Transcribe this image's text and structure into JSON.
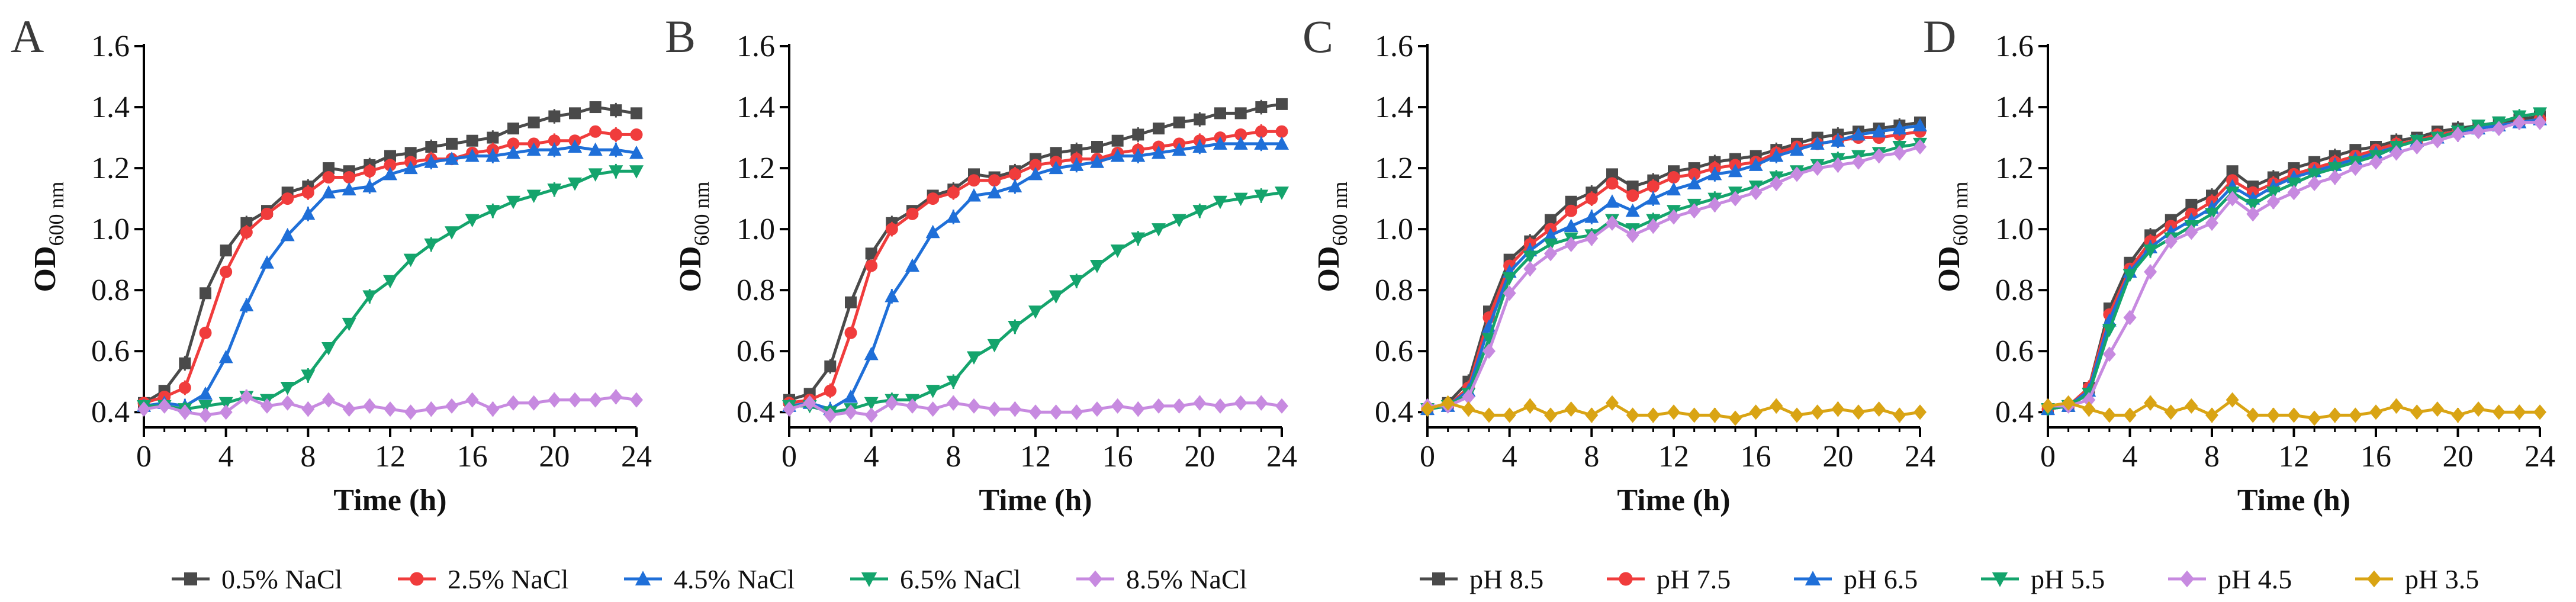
{
  "colors": {
    "s05": "#4a4a4a",
    "s25": "#f03c3c",
    "s45": "#1f6fd8",
    "s65": "#14a46c",
    "s85": "#c78ae0",
    "s35": "#d9a414"
  },
  "legends": {
    "nacl": [
      {
        "label": "0.5% NaCl",
        "color": "#4a4a4a",
        "marker": "square"
      },
      {
        "label": "2.5% NaCl",
        "color": "#f03c3c",
        "marker": "circle"
      },
      {
        "label": "4.5% NaCl",
        "color": "#1f6fd8",
        "marker": "triangle-up"
      },
      {
        "label": "6.5% NaCl",
        "color": "#14a46c",
        "marker": "triangle-down"
      },
      {
        "label": "8.5% NaCl",
        "color": "#c78ae0",
        "marker": "diamond"
      }
    ],
    "ph": [
      {
        "label": "pH 8.5",
        "color": "#4a4a4a",
        "marker": "square"
      },
      {
        "label": "pH 7.5",
        "color": "#f03c3c",
        "marker": "circle"
      },
      {
        "label": "pH 6.5",
        "color": "#1f6fd8",
        "marker": "triangle-up"
      },
      {
        "label": "pH 5.5",
        "color": "#14a46c",
        "marker": "triangle-down"
      },
      {
        "label": "pH 4.5",
        "color": "#c78ae0",
        "marker": "diamond"
      },
      {
        "label": "pH 3.5",
        "color": "#d9a414",
        "marker": "diamond"
      }
    ]
  },
  "chart_data": [
    {
      "panel": "A",
      "type": "line",
      "xlabel": "Time (h)",
      "ylabel": "OD",
      "ylabel_sub": "600 nm",
      "xlim": [
        0,
        24
      ],
      "ylim": [
        0.35,
        1.6
      ],
      "xticks": [
        "0",
        "4",
        "8",
        "12",
        "16",
        "20",
        "24"
      ],
      "yticks": [
        "0.4",
        "0.6",
        "0.8",
        "1.0",
        "1.2",
        "1.4",
        "1.6"
      ],
      "x": [
        0,
        1,
        2,
        3,
        4,
        5,
        6,
        7,
        8,
        9,
        10,
        11,
        12,
        13,
        14,
        15,
        16,
        17,
        18,
        19,
        20,
        21,
        22,
        23,
        24
      ],
      "series": [
        {
          "name": "0.5% NaCl",
          "marker": "square",
          "values": [
            0.43,
            0.47,
            0.56,
            0.79,
            0.93,
            1.02,
            1.06,
            1.12,
            1.14,
            1.2,
            1.19,
            1.21,
            1.24,
            1.25,
            1.27,
            1.28,
            1.29,
            1.3,
            1.33,
            1.35,
            1.37,
            1.38,
            1.4,
            1.39,
            1.38
          ]
        },
        {
          "name": "2.5% NaCl",
          "marker": "circle",
          "values": [
            0.43,
            0.45,
            0.48,
            0.66,
            0.86,
            0.99,
            1.05,
            1.1,
            1.12,
            1.17,
            1.17,
            1.19,
            1.21,
            1.22,
            1.23,
            1.23,
            1.25,
            1.26,
            1.28,
            1.28,
            1.29,
            1.29,
            1.32,
            1.31,
            1.31
          ]
        },
        {
          "name": "4.5% NaCl",
          "marker": "triangle-up",
          "values": [
            0.42,
            0.43,
            0.42,
            0.46,
            0.58,
            0.75,
            0.89,
            0.98,
            1.05,
            1.12,
            1.13,
            1.14,
            1.18,
            1.2,
            1.22,
            1.23,
            1.24,
            1.24,
            1.25,
            1.26,
            1.26,
            1.27,
            1.26,
            1.26,
            1.25
          ]
        },
        {
          "name": "6.5% NaCl",
          "marker": "triangle-down",
          "values": [
            0.42,
            0.42,
            0.41,
            0.42,
            0.43,
            0.45,
            0.44,
            0.48,
            0.52,
            0.61,
            0.69,
            0.78,
            0.83,
            0.9,
            0.95,
            0.99,
            1.03,
            1.06,
            1.09,
            1.11,
            1.13,
            1.15,
            1.18,
            1.19,
            1.19
          ]
        },
        {
          "name": "8.5% NaCl",
          "marker": "diamond",
          "values": [
            0.41,
            0.42,
            0.4,
            0.39,
            0.4,
            0.45,
            0.42,
            0.43,
            0.41,
            0.44,
            0.41,
            0.42,
            0.41,
            0.4,
            0.41,
            0.42,
            0.44,
            0.41,
            0.43,
            0.43,
            0.44,
            0.44,
            0.44,
            0.45,
            0.44
          ]
        }
      ]
    },
    {
      "panel": "B",
      "type": "line",
      "xlabel": "Time (h)",
      "ylabel": "OD",
      "ylabel_sub": "600 nm",
      "xlim": [
        0,
        24
      ],
      "ylim": [
        0.35,
        1.6
      ],
      "xticks": [
        "0",
        "4",
        "8",
        "12",
        "16",
        "20",
        "24"
      ],
      "yticks": [
        "0.4",
        "0.6",
        "0.8",
        "1.0",
        "1.2",
        "1.4",
        "1.6"
      ],
      "x": [
        0,
        1,
        2,
        3,
        4,
        5,
        6,
        7,
        8,
        9,
        10,
        11,
        12,
        13,
        14,
        15,
        16,
        17,
        18,
        19,
        20,
        21,
        22,
        23,
        24
      ],
      "series": [
        {
          "name": "0.5% NaCl",
          "marker": "square",
          "values": [
            0.44,
            0.46,
            0.55,
            0.76,
            0.92,
            1.02,
            1.06,
            1.11,
            1.13,
            1.18,
            1.17,
            1.19,
            1.23,
            1.25,
            1.26,
            1.27,
            1.29,
            1.31,
            1.33,
            1.35,
            1.36,
            1.38,
            1.38,
            1.4,
            1.41
          ]
        },
        {
          "name": "2.5% NaCl",
          "marker": "circle",
          "values": [
            0.43,
            0.44,
            0.47,
            0.66,
            0.88,
            1.0,
            1.05,
            1.1,
            1.12,
            1.16,
            1.16,
            1.18,
            1.21,
            1.22,
            1.23,
            1.23,
            1.25,
            1.26,
            1.27,
            1.28,
            1.29,
            1.3,
            1.31,
            1.32,
            1.32
          ]
        },
        {
          "name": "4.5% NaCl",
          "marker": "triangle-up",
          "values": [
            0.42,
            0.43,
            0.41,
            0.45,
            0.59,
            0.78,
            0.88,
            0.99,
            1.04,
            1.11,
            1.12,
            1.14,
            1.18,
            1.2,
            1.21,
            1.22,
            1.24,
            1.24,
            1.25,
            1.26,
            1.27,
            1.28,
            1.28,
            1.28,
            1.28
          ]
        },
        {
          "name": "6.5% NaCl",
          "marker": "triangle-down",
          "values": [
            0.42,
            0.42,
            0.4,
            0.41,
            0.43,
            0.44,
            0.44,
            0.47,
            0.5,
            0.58,
            0.62,
            0.68,
            0.73,
            0.78,
            0.83,
            0.88,
            0.93,
            0.97,
            1.0,
            1.03,
            1.06,
            1.09,
            1.1,
            1.11,
            1.12
          ]
        },
        {
          "name": "8.5% NaCl",
          "marker": "diamond",
          "values": [
            0.41,
            0.43,
            0.39,
            0.4,
            0.39,
            0.43,
            0.42,
            0.41,
            0.43,
            0.42,
            0.41,
            0.41,
            0.4,
            0.4,
            0.4,
            0.41,
            0.42,
            0.41,
            0.42,
            0.42,
            0.43,
            0.42,
            0.43,
            0.43,
            0.42
          ]
        }
      ]
    },
    {
      "panel": "C",
      "type": "line",
      "xlabel": "Time (h)",
      "ylabel": "OD",
      "ylabel_sub": "600 nm",
      "xlim": [
        0,
        24
      ],
      "ylim": [
        0.35,
        1.6
      ],
      "xticks": [
        "0",
        "4",
        "8",
        "12",
        "16",
        "20",
        "24"
      ],
      "yticks": [
        "0.4",
        "0.6",
        "0.8",
        "1.0",
        "1.2",
        "1.4",
        "1.6"
      ],
      "x": [
        0,
        1,
        2,
        3,
        4,
        5,
        6,
        7,
        8,
        9,
        10,
        11,
        12,
        13,
        14,
        15,
        16,
        17,
        18,
        19,
        20,
        21,
        22,
        23,
        24
      ],
      "series": [
        {
          "name": "pH 8.5",
          "marker": "square",
          "values": [
            0.41,
            0.43,
            0.5,
            0.73,
            0.9,
            0.96,
            1.03,
            1.09,
            1.12,
            1.18,
            1.14,
            1.16,
            1.19,
            1.2,
            1.22,
            1.23,
            1.24,
            1.26,
            1.28,
            1.3,
            1.31,
            1.32,
            1.33,
            1.34,
            1.35
          ]
        },
        {
          "name": "pH 7.5",
          "marker": "circle",
          "values": [
            0.41,
            0.42,
            0.48,
            0.71,
            0.88,
            0.95,
            1.0,
            1.06,
            1.1,
            1.15,
            1.11,
            1.14,
            1.17,
            1.18,
            1.2,
            1.21,
            1.22,
            1.25,
            1.27,
            1.28,
            1.29,
            1.3,
            1.3,
            1.31,
            1.32
          ]
        },
        {
          "name": "pH 6.5",
          "marker": "triangle-up",
          "values": [
            0.41,
            0.42,
            0.47,
            0.68,
            0.86,
            0.93,
            0.98,
            1.01,
            1.04,
            1.09,
            1.06,
            1.1,
            1.13,
            1.15,
            1.18,
            1.19,
            1.21,
            1.24,
            1.26,
            1.28,
            1.29,
            1.31,
            1.32,
            1.33,
            1.34
          ]
        },
        {
          "name": "pH 5.5",
          "marker": "triangle-down",
          "values": [
            0.41,
            0.42,
            0.46,
            0.64,
            0.84,
            0.91,
            0.95,
            0.97,
            0.98,
            1.03,
            1.0,
            1.03,
            1.06,
            1.08,
            1.1,
            1.12,
            1.14,
            1.17,
            1.19,
            1.21,
            1.23,
            1.24,
            1.25,
            1.27,
            1.28
          ]
        },
        {
          "name": "pH 4.5",
          "marker": "diamond",
          "values": [
            0.42,
            0.42,
            0.45,
            0.6,
            0.79,
            0.87,
            0.92,
            0.95,
            0.97,
            1.02,
            0.98,
            1.01,
            1.04,
            1.06,
            1.08,
            1.1,
            1.12,
            1.15,
            1.18,
            1.2,
            1.21,
            1.22,
            1.24,
            1.25,
            1.27
          ]
        },
        {
          "name": "pH 3.5",
          "marker": "diamond",
          "values": [
            0.41,
            0.43,
            0.41,
            0.39,
            0.39,
            0.42,
            0.39,
            0.41,
            0.39,
            0.43,
            0.39,
            0.39,
            0.4,
            0.39,
            0.39,
            0.38,
            0.4,
            0.42,
            0.39,
            0.4,
            0.41,
            0.4,
            0.41,
            0.39,
            0.4
          ]
        }
      ]
    },
    {
      "panel": "D",
      "type": "line",
      "xlabel": "Time (h)",
      "ylabel": "OD",
      "ylabel_sub": "600 nm",
      "xlim": [
        0,
        24
      ],
      "ylim": [
        0.35,
        1.6
      ],
      "xticks": [
        "0",
        "4",
        "8",
        "12",
        "16",
        "20",
        "24"
      ],
      "yticks": [
        "0.4",
        "0.6",
        "0.8",
        "1.0",
        "1.2",
        "1.4",
        "1.6"
      ],
      "x": [
        0,
        1,
        2,
        3,
        4,
        5,
        6,
        7,
        8,
        9,
        10,
        11,
        12,
        13,
        14,
        15,
        16,
        17,
        18,
        19,
        20,
        21,
        22,
        23,
        24
      ],
      "series": [
        {
          "name": "pH 8.5",
          "marker": "square",
          "values": [
            0.41,
            0.42,
            0.48,
            0.74,
            0.89,
            0.98,
            1.03,
            1.08,
            1.11,
            1.19,
            1.14,
            1.17,
            1.2,
            1.22,
            1.24,
            1.26,
            1.27,
            1.29,
            1.3,
            1.32,
            1.33,
            1.34,
            1.35,
            1.36,
            1.37
          ]
        },
        {
          "name": "pH 7.5",
          "marker": "circle",
          "values": [
            0.41,
            0.42,
            0.48,
            0.72,
            0.87,
            0.96,
            1.01,
            1.05,
            1.09,
            1.16,
            1.12,
            1.15,
            1.18,
            1.2,
            1.22,
            1.24,
            1.26,
            1.28,
            1.29,
            1.31,
            1.32,
            1.33,
            1.34,
            1.35,
            1.36
          ]
        },
        {
          "name": "pH 6.5",
          "marker": "triangle-up",
          "values": [
            0.41,
            0.42,
            0.47,
            0.7,
            0.86,
            0.94,
            0.99,
            1.03,
            1.07,
            1.14,
            1.1,
            1.14,
            1.17,
            1.19,
            1.21,
            1.23,
            1.25,
            1.27,
            1.29,
            1.3,
            1.32,
            1.33,
            1.34,
            1.35,
            1.36
          ]
        },
        {
          "name": "pH 5.5",
          "marker": "triangle-down",
          "values": [
            0.41,
            0.42,
            0.46,
            0.67,
            0.85,
            0.93,
            0.97,
            1.01,
            1.05,
            1.12,
            1.08,
            1.12,
            1.15,
            1.18,
            1.2,
            1.22,
            1.24,
            1.27,
            1.29,
            1.3,
            1.32,
            1.34,
            1.35,
            1.37,
            1.38
          ]
        },
        {
          "name": "pH 4.5",
          "marker": "diamond",
          "values": [
            0.42,
            0.42,
            0.44,
            0.59,
            0.71,
            0.86,
            0.96,
            0.99,
            1.02,
            1.1,
            1.05,
            1.09,
            1.12,
            1.15,
            1.17,
            1.2,
            1.22,
            1.25,
            1.27,
            1.29,
            1.31,
            1.32,
            1.33,
            1.35,
            1.35
          ]
        },
        {
          "name": "pH 3.5",
          "marker": "diamond",
          "values": [
            0.42,
            0.43,
            0.41,
            0.39,
            0.39,
            0.43,
            0.4,
            0.42,
            0.39,
            0.44,
            0.39,
            0.39,
            0.39,
            0.38,
            0.39,
            0.39,
            0.4,
            0.42,
            0.4,
            0.41,
            0.39,
            0.41,
            0.4,
            0.4,
            0.4
          ]
        }
      ]
    }
  ]
}
